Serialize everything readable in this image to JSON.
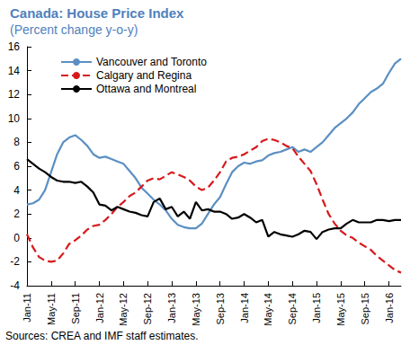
{
  "chart_data": {
    "type": "line",
    "title": "Canada: House Price Index",
    "subtitle": "(Percent change y-o-y)",
    "source": "Sources: CREA and IMF staff estimates.",
    "categories": [
      "Jan-11",
      null,
      null,
      null,
      "May-11",
      null,
      null,
      null,
      "Sep-11",
      null,
      null,
      null,
      "Jan-12",
      null,
      null,
      null,
      "May-12",
      null,
      null,
      null,
      "Sep-12",
      null,
      null,
      null,
      "Jan-13",
      null,
      null,
      null,
      "May-13",
      null,
      null,
      null,
      "Sep-13",
      null,
      null,
      null,
      "Jan-14",
      null,
      null,
      null,
      "May-14",
      null,
      null,
      null,
      "Sep-14",
      null,
      null,
      null,
      "Jan-15",
      null,
      null,
      null,
      "May-15",
      null,
      null,
      null,
      "Sep-15",
      null,
      null,
      null,
      "Jan-16",
      null,
      null
    ],
    "series": [
      {
        "name": "Vancouver and Toronto",
        "color": "#5b8fc3",
        "line_style": "solid",
        "marker": "none",
        "values": [
          2.8,
          2.9,
          3.2,
          4.0,
          5.5,
          7.0,
          8.0,
          8.4,
          8.6,
          8.2,
          7.7,
          7.0,
          6.7,
          6.8,
          6.6,
          6.4,
          6.2,
          5.6,
          5.0,
          4.2,
          3.7,
          3.2,
          2.8,
          2.3,
          1.6,
          1.1,
          0.9,
          0.8,
          0.8,
          1.2,
          2.0,
          2.8,
          3.4,
          4.5,
          5.5,
          6.0,
          6.3,
          6.2,
          6.4,
          6.5,
          6.9,
          7.1,
          7.2,
          7.4,
          7.6,
          7.2,
          7.4,
          7.2,
          7.6,
          8.0,
          8.6,
          9.2,
          9.6,
          10.0,
          10.5,
          11.2,
          11.7,
          12.2,
          12.5,
          12.9,
          13.8,
          14.6,
          15.0
        ]
      },
      {
        "name": "Calgary and Regina",
        "color": "#d7191c",
        "line_style": "dashed",
        "marker": "none",
        "values": [
          0.3,
          -0.8,
          -1.6,
          -1.9,
          -2.0,
          -1.9,
          -1.3,
          -0.5,
          -0.2,
          0.2,
          0.7,
          1.0,
          1.1,
          1.5,
          2.0,
          2.6,
          3.0,
          3.5,
          3.8,
          4.3,
          4.8,
          5.0,
          4.9,
          5.2,
          5.5,
          5.3,
          5.1,
          4.8,
          4.3,
          4.0,
          4.2,
          4.8,
          5.5,
          6.4,
          6.7,
          6.8,
          7.0,
          7.3,
          7.6,
          8.1,
          8.3,
          8.2,
          8.0,
          7.7,
          7.5,
          6.8,
          6.2,
          5.6,
          4.5,
          3.2,
          2.0,
          1.2,
          0.6,
          0.2,
          0.0,
          -0.4,
          -0.7,
          -1.0,
          -1.5,
          -1.9,
          -2.3,
          -2.7,
          -2.9
        ]
      },
      {
        "name": "Ottawa and Montreal",
        "color": "#000000",
        "line_style": "solid",
        "marker": "none",
        "values": [
          6.6,
          6.2,
          5.8,
          5.5,
          5.1,
          4.8,
          4.7,
          4.7,
          4.6,
          4.7,
          4.3,
          3.8,
          2.8,
          2.7,
          2.3,
          2.6,
          2.4,
          2.2,
          2.1,
          1.9,
          1.8,
          3.0,
          3.3,
          2.4,
          2.6,
          1.8,
          2.2,
          1.6,
          3.0,
          2.3,
          2.4,
          2.2,
          2.2,
          2.0,
          1.6,
          1.7,
          2.0,
          1.7,
          1.3,
          1.5,
          0.1,
          0.5,
          0.3,
          0.2,
          0.1,
          0.3,
          0.6,
          0.5,
          -0.1,
          0.5,
          0.7,
          0.8,
          0.8,
          1.2,
          1.5,
          1.3,
          1.3,
          1.3,
          1.5,
          1.5,
          1.4,
          1.5,
          1.5
        ]
      }
    ],
    "ylim": [
      -4,
      16
    ],
    "yticks": [
      -4,
      -2,
      0,
      2,
      4,
      6,
      8,
      10,
      12,
      14,
      16
    ],
    "grid": false,
    "legend": "top-left"
  }
}
